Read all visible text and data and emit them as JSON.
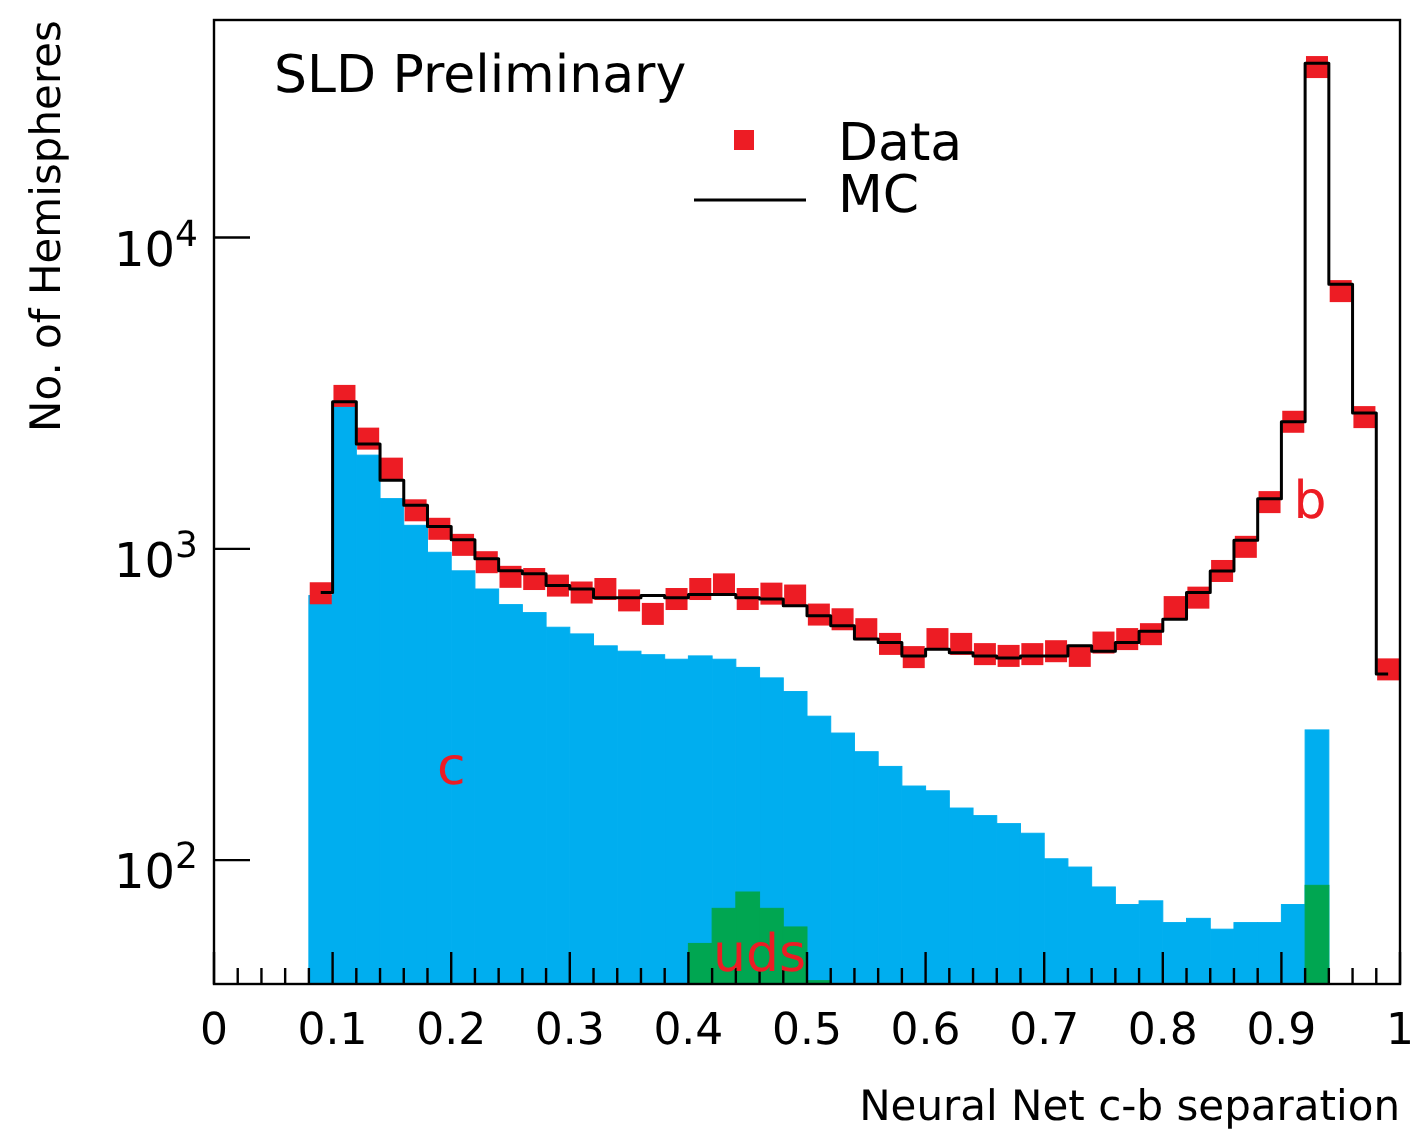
{
  "chart_data": {
    "type": "histogram",
    "title": "SLD Preliminary",
    "xlabel": "Neural Net c-b separation",
    "ylabel": "No. of Hemispheres",
    "bins": [
      0.08,
      0.1,
      0.12,
      0.14,
      0.16,
      0.18,
      0.2,
      0.22,
      0.24,
      0.26,
      0.28,
      0.3,
      0.32,
      0.34,
      0.36,
      0.38,
      0.4,
      0.42,
      0.44,
      0.46,
      0.48,
      0.5,
      0.52,
      0.54,
      0.56,
      0.58,
      0.6,
      0.62,
      0.64,
      0.66,
      0.68,
      0.7,
      0.72,
      0.74,
      0.76,
      0.78,
      0.8,
      0.82,
      0.84,
      0.86,
      0.88,
      0.9,
      0.92,
      0.94,
      0.96,
      0.98,
      1.0
    ],
    "log": "y",
    "xlim": [
      0,
      1
    ],
    "ylim": [
      40,
      50000
    ],
    "xticks": [
      0,
      {
        "value": 0.02,
        "label": null
      },
      {
        "value": 0.04,
        "label": null
      },
      {
        "value": 0.06,
        "label": null
      },
      {
        "value": 0.08,
        "label": null
      },
      0.1,
      {
        "value": 0.12,
        "label": null
      },
      {
        "value": 0.14,
        "label": null
      },
      {
        "value": 0.16,
        "label": null
      },
      {
        "value": 0.18,
        "label": null
      },
      0.2,
      {
        "value": 0.22,
        "label": null
      },
      {
        "value": 0.24,
        "label": null
      },
      {
        "value": 0.26,
        "label": null
      },
      {
        "value": 0.28,
        "label": null
      },
      0.3,
      {
        "value": 0.32,
        "label": null
      },
      {
        "value": 0.34,
        "label": null
      },
      {
        "value": 0.36,
        "label": null
      },
      {
        "value": 0.38,
        "label": null
      },
      0.4,
      {
        "value": 0.42,
        "label": null
      },
      {
        "value": 0.44,
        "label": null
      },
      {
        "value": 0.46,
        "label": null
      },
      {
        "value": 0.48,
        "label": null
      },
      0.5,
      {
        "value": 0.52,
        "label": null
      },
      {
        "value": 0.54,
        "label": null
      },
      {
        "value": 0.56,
        "label": null
      },
      {
        "value": 0.58,
        "label": null
      },
      0.6,
      {
        "value": 0.62,
        "label": null
      },
      {
        "value": 0.64,
        "label": null
      },
      {
        "value": 0.66,
        "label": null
      },
      {
        "value": 0.68,
        "label": null
      },
      0.7,
      {
        "value": 0.72,
        "label": null
      },
      {
        "value": 0.74,
        "label": null
      },
      {
        "value": 0.76,
        "label": null
      },
      {
        "value": 0.78,
        "label": null
      },
      0.8,
      {
        "value": 0.82,
        "label": null
      },
      {
        "value": 0.84,
        "label": null
      },
      {
        "value": 0.86,
        "label": null
      },
      {
        "value": 0.88,
        "label": null
      },
      0.9,
      {
        "value": 0.92,
        "label": null
      },
      {
        "value": 0.94,
        "label": null
      },
      {
        "value": 0.96,
        "label": null
      },
      {
        "value": 0.98,
        "label": null
      },
      1
    ],
    "yticks": [
      {
        "value": 100,
        "label": "10$^{2}$"
      },
      {
        "value": 1000,
        "label": "10$^{3}$"
      },
      {
        "value": 10000,
        "label": "10$^{4}$"
      }
    ],
    "legend": "top",
    "annotations": [
      {
        "text": "c",
        "x": 0.2,
        "y": 195
      },
      "b",
      {
        "text": "uds",
        "x": 0.46,
        "y": 49
      }
    ],
    "series": [
      {
        "color": "#00aeef",
        "values": [
          708,
          2860,
          2000,
          1450,
          1190,
          975,
          850,
          743,
          662,
          624,
          560,
          533,
          488,
          469,
          457,
          442,
          453,
          442,
          416,
          385,
          348,
          290,
          256,
          223,
          200,
          173,
          167,
          147,
          139,
          131,
          122,
          101,
          95,
          82,
          72,
          74,
          63,
          65,
          60,
          63,
          63,
          72,
          262,
          null,
          null,
          null
        ]
      },
      {
        "color": "#00a651",
        "values": [
          null,
          null,
          null,
          null,
          null,
          null,
          null,
          null,
          null,
          null,
          null,
          null,
          null,
          null,
          null,
          null,
          54,
          70,
          79,
          70,
          61,
          41,
          null,
          null,
          null,
          null,
          null,
          null,
          null,
          null,
          null,
          null,
          null,
          null,
          null,
          null,
          null,
          null,
          null,
          null,
          null,
          null,
          83,
          null,
          null,
          null
        ]
      },
      {
        "type": "step",
        "name": "MC",
        "color": "#000000",
        "x": [
          0.09,
          0.11,
          0.13,
          0.15,
          0.17,
          0.19,
          0.21,
          0.23,
          0.25,
          0.27,
          0.29,
          0.31,
          0.33,
          0.35,
          0.37,
          0.39,
          0.41,
          0.43,
          0.45,
          0.47,
          0.49,
          0.51,
          0.53,
          0.55,
          0.57,
          0.59,
          0.61,
          0.63,
          0.65,
          0.67,
          0.69,
          0.71,
          0.73,
          0.75,
          0.77,
          0.79,
          0.81,
          0.83,
          0.85,
          0.87,
          0.89,
          0.91,
          0.93,
          0.95,
          0.97,
          0.99
        ],
        "values": [
          724,
          2970,
          2170,
          1660,
          1380,
          1180,
          1070,
          929,
          850,
          832,
          762,
          743,
          697,
          697,
          708,
          697,
          714,
          714,
          697,
          690,
          657,
          610,
          566,
          513,
          500,
          453,
          476,
          464,
          453,
          446,
          453,
          453,
          488,
          469,
          500,
          544,
          594,
          724,
          849,
          1066,
          1449,
          2560,
          36300,
          7080,
          2730,
          396
        ]
      },
      {
        "type": "scatter",
        "name": "Data",
        "color": "#ed1c24",
        "marker": "square",
        "x": [
          0.09,
          0.11,
          0.13,
          0.15,
          0.17,
          0.19,
          0.21,
          0.23,
          0.25,
          0.27,
          0.29,
          0.31,
          0.33,
          0.35,
          0.37,
          0.39,
          0.41,
          0.43,
          0.45,
          0.47,
          0.49,
          0.51,
          0.53,
          0.55,
          0.57,
          0.59,
          0.61,
          0.63,
          0.65,
          0.67,
          0.69,
          0.71,
          0.73,
          0.75,
          0.77,
          0.79,
          0.81,
          0.83,
          0.85,
          0.87,
          0.89,
          0.91,
          0.93,
          0.95,
          0.97,
          0.99
        ],
        "values": [
          720,
          3100,
          2260,
          1810,
          1330,
          1160,
          1030,
          906,
          813,
          800,
          762,
          724,
          743,
          683,
          618,
          690,
          743,
          769,
          690,
          718,
          708,
          615,
          594,
          552,
          495,
          449,
          513,
          495,
          459,
          453,
          459,
          469,
          453,
          500,
          513,
          532,
          650,
          697,
          849,
          1015,
          1413,
          2560,
          35300,
          6730,
          2650,
          410
        ]
      }
    ]
  }
}
